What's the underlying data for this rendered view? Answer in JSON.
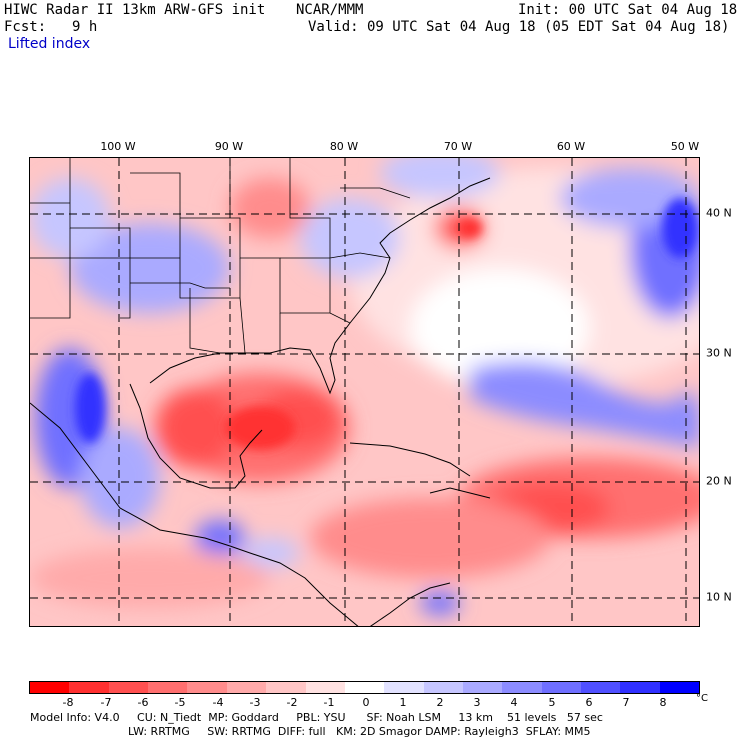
{
  "header": {
    "title": "HIWC Radar II 13km ARW-GFS init",
    "org": "NCAR/MMM",
    "init": "Init: 00 UTC Sat 04 Aug 18",
    "fcst_label": "Fcst:",
    "fcst_value": "9 h",
    "valid": "Valid: 09 UTC Sat 04 Aug 18 (05 EDT Sat 04 Aug 18)",
    "field": "Lifted index"
  },
  "map": {
    "lon_labels": [
      "100 W",
      "90 W",
      "80 W",
      "70 W",
      "60 W",
      "50 W"
    ],
    "lat_labels": [
      "40 N",
      "30 N",
      "20 N",
      "10 N"
    ],
    "colors": {
      "land_border": "#000000",
      "grid": "#000000"
    }
  },
  "colorbar": {
    "colors": [
      "#ff0000",
      "#ff3030",
      "#ff5050",
      "#ff6f6f",
      "#ff8c8c",
      "#ffaaaa",
      "#ffc6c6",
      "#ffe2e2",
      "#ffffff",
      "#e2e2ff",
      "#c6c6ff",
      "#aaaaff",
      "#8c8cff",
      "#6f6fff",
      "#5050ff",
      "#3030ff",
      "#0000ff"
    ],
    "ticks": [
      "-8",
      "-7",
      "-6",
      "-5",
      "-4",
      "-3",
      "-2",
      "-1",
      "0",
      "1",
      "2",
      "3",
      "4",
      "5",
      "6",
      "7",
      "8"
    ],
    "unit": "°C"
  },
  "footer": {
    "line1": "Model Info: V4.0     CU: N_Tiedt  MP: Goddard     PBL: YSU      SF: Noah LSM     13 km    51 levels   57 sec",
    "line2": "LW: RRTMG     SW: RRTMG  DIFF: full   KM: 2D Smagor DAMP: Rayleigh3  SFLAY: MM5"
  }
}
